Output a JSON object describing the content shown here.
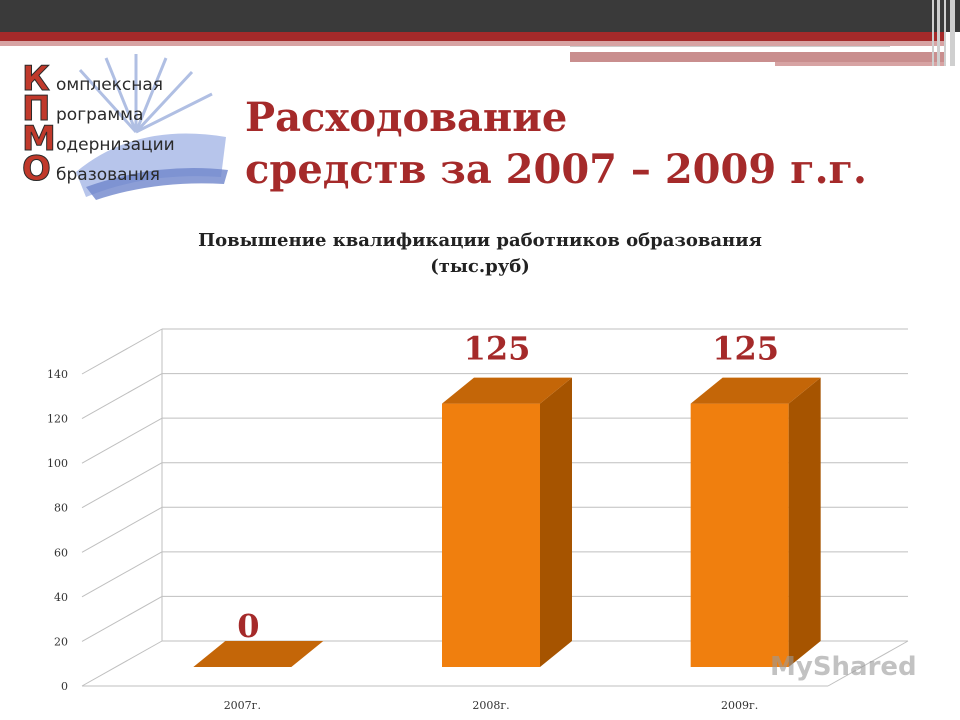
{
  "slide": {
    "title_line1": "Расходование",
    "title_line2": "средств за 2007 – 2009 г.г.",
    "accent_color": "#a52a2a"
  },
  "logo": {
    "letters": [
      "К",
      "П",
      "М",
      "О"
    ],
    "words": [
      "омплексная",
      "рограмма",
      "одернизации",
      "бразования"
    ]
  },
  "chart_data": {
    "type": "bar",
    "title_line1": "Повышение квалификации работников образования",
    "title_line2": "(тыс.руб)",
    "categories": [
      "2007г.",
      "2008г.",
      "2009г."
    ],
    "values": [
      0,
      125,
      125
    ],
    "value_labels": [
      "0",
      "125",
      "125"
    ],
    "ylim": [
      0,
      140
    ],
    "yticks": [
      0,
      20,
      40,
      60,
      80,
      100,
      120,
      140
    ],
    "grid": true,
    "legend": "none",
    "bar_color": "#f07f0e",
    "bar_side_color": "#a65400",
    "bar_top_color": "#c46608",
    "label_color": "#a52a2a"
  },
  "watermark": {
    "text": "MyShared"
  }
}
